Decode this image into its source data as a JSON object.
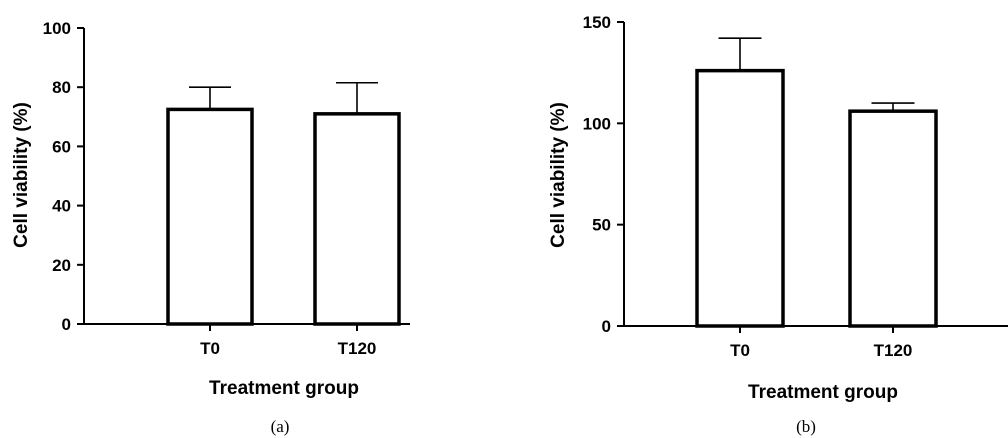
{
  "chart_data": [
    {
      "type": "bar",
      "panel_label": "(a)",
      "xlabel": "Treatment group",
      "ylabel": "Cell viability (%)",
      "categories": [
        "T0",
        "T120"
      ],
      "values": [
        72.5,
        71
      ],
      "error_upper": [
        80,
        81.5
      ],
      "ylim": [
        0,
        100
      ],
      "yticks": [
        0,
        20,
        40,
        60,
        80,
        100
      ],
      "grid": false,
      "bar_fill": "#ffffff",
      "bar_stroke": "#000000"
    },
    {
      "type": "bar",
      "panel_label": "(b)",
      "xlabel": "Treatment group",
      "ylabel": "Cell viability (%)",
      "categories": [
        "T0",
        "T120"
      ],
      "values": [
        126,
        106
      ],
      "error_upper": [
        142,
        110
      ],
      "ylim": [
        0,
        150
      ],
      "yticks": [
        0,
        50,
        100,
        150
      ],
      "grid": false,
      "bar_fill": "#ffffff",
      "bar_stroke": "#000000"
    }
  ]
}
